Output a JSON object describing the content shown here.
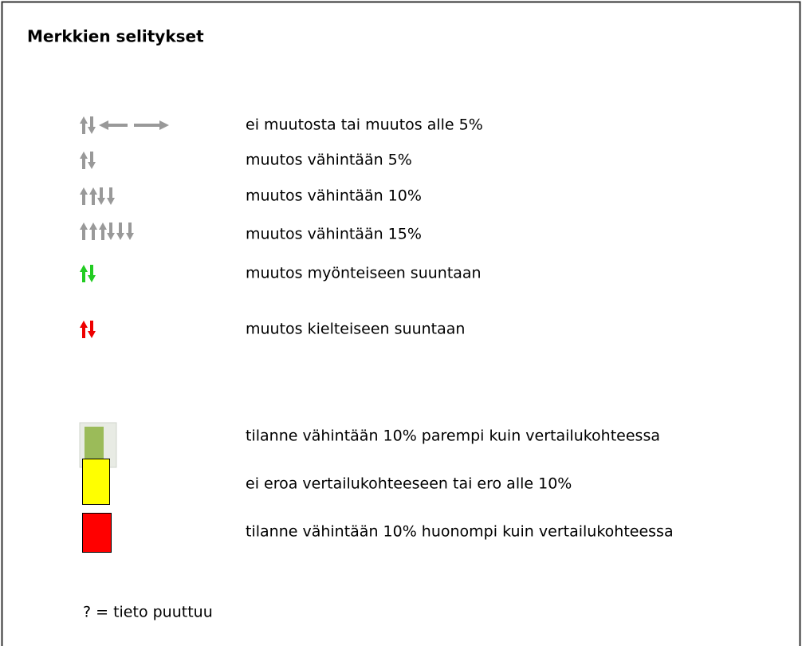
{
  "title": "Merkkien selitykset",
  "arrow_items": [
    {
      "label": "ei muutosta tai muutos alle 5%"
    },
    {
      "label": "muutos vähintään 5%"
    },
    {
      "label": "muutos vähintään 10%"
    },
    {
      "label": "muutos vähintään 15%"
    },
    {
      "label": "muutos myönteiseen suuntaan"
    },
    {
      "label": "muutos kielteiseen suuntaan"
    }
  ],
  "color_items": [
    {
      "label": "tilanne vähintään 10% parempi kuin vertailukohteessa"
    },
    {
      "label": "ei eroa vertailukohteeseen tai ero alle 10%"
    },
    {
      "label": "tilanne vähintään 10% huonompi kuin vertailukohteessa"
    }
  ],
  "footnote": "? = tieto puuttuu"
}
